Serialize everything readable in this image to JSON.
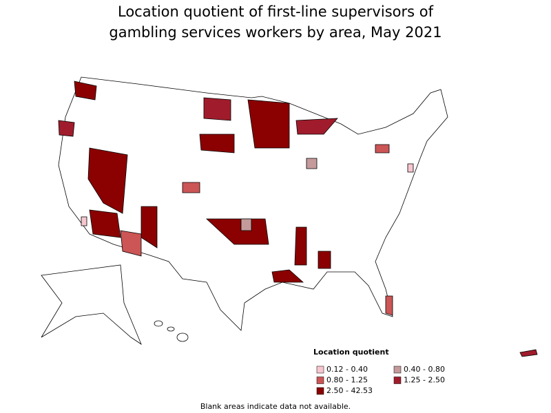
{
  "title": "Location quotient of first-line supervisors of gambling services workers by area, May 2021",
  "legend": {
    "title": "Location quotient",
    "items": [
      {
        "label": "0.12 - 0.40",
        "color": "#f7c6cf"
      },
      {
        "label": "0.40 - 0.80",
        "color": "#c49a9a"
      },
      {
        "label": "0.80 - 1.25",
        "color": "#cc5555"
      },
      {
        "label": "1.25 - 2.50",
        "color": "#a01c2c"
      },
      {
        "label": "2.50 - 42.53",
        "color": "#8b0000"
      }
    ]
  },
  "footnote": "Blank areas indicate data not available."
}
